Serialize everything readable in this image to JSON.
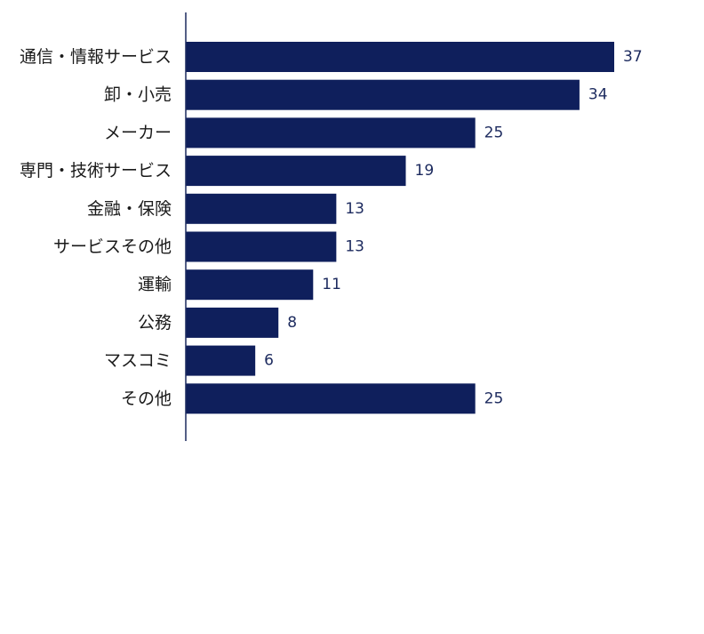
{
  "chart_data": {
    "type": "bar",
    "orientation": "horizontal",
    "categories": [
      "通信・情報サービス",
      "卸・小売",
      "メーカー",
      "専門・技術サービス",
      "金融・保険",
      "サービスその他",
      "運輸",
      "公務",
      "マスコミ",
      "その他"
    ],
    "values": [
      37,
      34,
      25,
      19,
      13,
      13,
      11,
      8,
      6,
      25
    ],
    "value_labels": [
      "37",
      "34",
      "25",
      "19",
      "13",
      "13",
      "11",
      "8",
      "6",
      "25"
    ],
    "title": "",
    "xlabel": "",
    "ylabel": "",
    "xlim": [
      0,
      37
    ],
    "grid": false,
    "legend": "none",
    "bar_color": "#0f1f5c",
    "axis_color": "#1c2a5e"
  }
}
